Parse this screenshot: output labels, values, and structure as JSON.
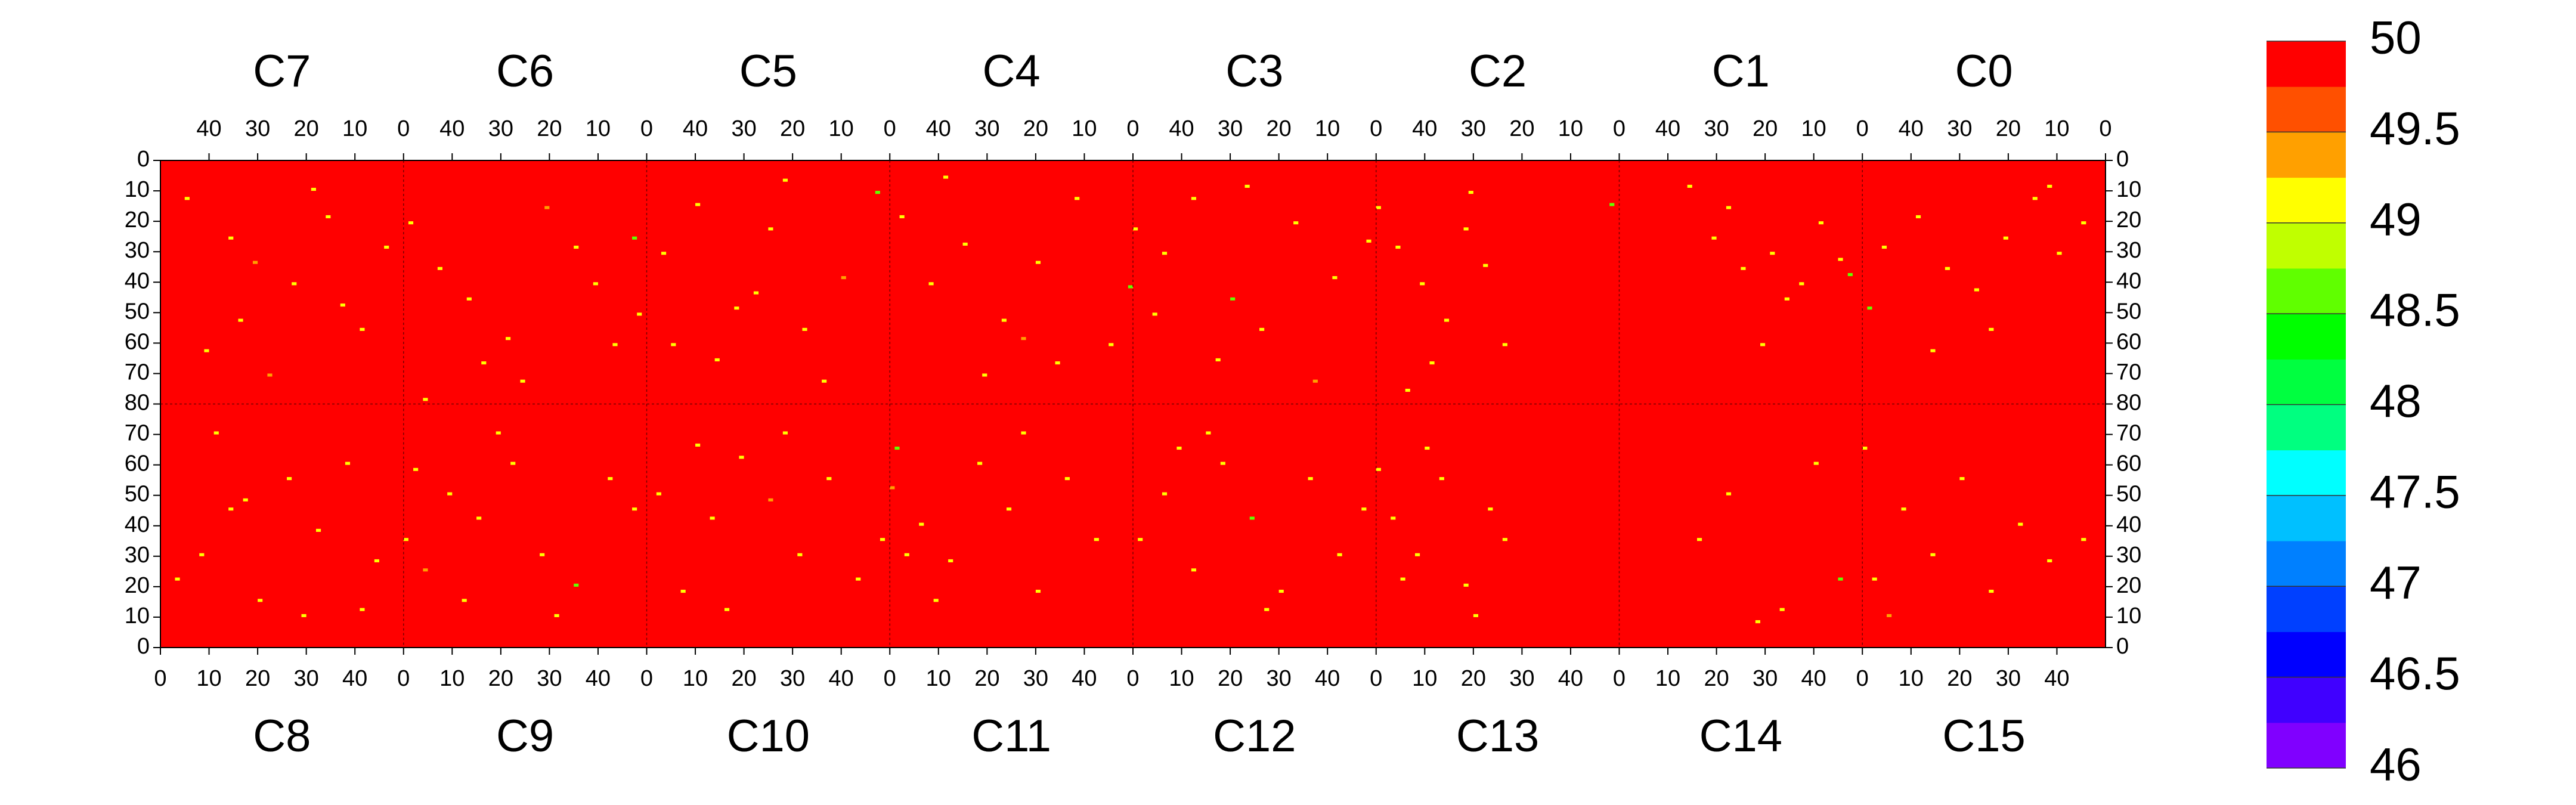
{
  "chart_data": {
    "type": "heatmap",
    "fill_value": 50,
    "xticks": [
      0,
      10,
      20,
      30,
      40
    ],
    "xlim": [
      0,
      50
    ],
    "yticks": [
      0,
      10,
      20,
      30,
      40,
      50,
      60,
      70,
      80
    ],
    "yticks_bottom": [
      0,
      10,
      20,
      30,
      40,
      50,
      60,
      70
    ],
    "ylim": [
      0,
      80
    ],
    "colorbar": {
      "lim": [
        46,
        50
      ],
      "ticks": [
        46,
        46.5,
        47,
        47.5,
        48,
        48.5,
        49,
        49.5,
        50
      ],
      "colors": [
        "#8000ff",
        "#4000ff",
        "#0000ff",
        "#0040ff",
        "#0080ff",
        "#00c0ff",
        "#00ffff",
        "#00ff80",
        "#00ff40",
        "#00ff00",
        "#60ff00",
        "#c0ff00",
        "#ffff00",
        "#ffa000",
        "#ff5000",
        "#ff0000"
      ]
    },
    "panels": [
      {
        "name": "C7",
        "position": "top",
        "x": [
          44,
          35,
          30,
          22,
          15,
          8,
          40,
          27,
          12,
          3,
          18,
          33
        ],
        "y": [
          12,
          25,
          33,
          40,
          18,
          55,
          62,
          70,
          47,
          28,
          9,
          52
        ],
        "values": [
          49,
          49,
          49.25,
          49,
          49,
          49,
          49,
          49.25,
          49,
          49,
          49,
          49
        ]
      },
      {
        "name": "C6",
        "position": "top",
        "x": [
          48,
          42,
          36,
          28,
          20,
          14,
          6,
          1,
          25,
          33,
          10,
          45,
          2
        ],
        "y": [
          20,
          35,
          45,
          58,
          15,
          28,
          60,
          50,
          72,
          66,
          40,
          78,
          25
        ],
        "values": [
          49,
          49,
          49,
          49,
          49.25,
          49,
          49,
          49,
          49,
          49,
          49,
          49,
          48.5
        ]
      },
      {
        "name": "C5",
        "position": "top",
        "x": [
          46,
          39,
          31,
          24,
          17,
          9,
          2,
          35,
          13,
          27,
          44,
          21
        ],
        "y": [
          30,
          14,
          48,
          22,
          55,
          38,
          10,
          65,
          72,
          43,
          60,
          6
        ],
        "values": [
          49,
          49,
          49,
          49,
          49,
          49.25,
          48.5,
          49,
          49,
          49,
          49,
          49
        ]
      },
      {
        "name": "C4",
        "position": "top",
        "x": [
          47,
          41,
          34,
          26,
          19,
          11,
          4,
          0,
          30,
          15,
          38,
          22
        ],
        "y": [
          18,
          40,
          27,
          52,
          33,
          12,
          60,
          41,
          70,
          66,
          5,
          58
        ],
        "values": [
          49,
          49,
          49,
          49,
          49,
          49,
          49,
          48.5,
          49,
          49,
          49,
          49.25
        ]
      },
      {
        "name": "C3",
        "position": "top",
        "x": [
          49,
          43,
          37,
          29,
          23,
          16,
          8,
          1,
          32,
          12,
          45,
          26
        ],
        "y": [
          22,
          30,
          12,
          45,
          55,
          20,
          38,
          26,
          65,
          72,
          50,
          8
        ],
        "values": [
          49,
          49,
          49,
          48.5,
          49,
          49,
          49,
          49,
          49,
          49.25,
          49,
          49
        ]
      },
      {
        "name": "C2",
        "position": "top",
        "x": [
          49,
          45,
          40,
          35,
          31,
          27,
          23,
          38,
          43,
          30,
          1
        ],
        "y": [
          15,
          28,
          40,
          52,
          22,
          34,
          60,
          66,
          75,
          10,
          14
        ],
        "values": [
          49,
          49,
          49,
          49,
          49,
          49,
          49,
          49,
          49,
          49,
          48.5
        ]
      },
      {
        "name": "C1",
        "position": "top",
        "x": [
          35,
          30,
          24,
          18,
          12,
          8,
          4,
          27,
          15,
          2,
          20
        ],
        "y": [
          8,
          25,
          35,
          30,
          40,
          20,
          32,
          15,
          45,
          37,
          60
        ],
        "values": [
          49,
          49,
          49,
          49,
          49,
          49,
          49,
          49,
          49,
          48.5,
          49
        ]
      },
      {
        "name": "C0",
        "position": "top",
        "x": [
          45,
          38,
          32,
          26,
          20,
          14,
          9,
          4,
          48,
          23,
          11,
          35
        ],
        "y": [
          28,
          18,
          35,
          42,
          25,
          12,
          30,
          20,
          48,
          55,
          8,
          62
        ],
        "values": [
          49,
          49,
          49,
          49,
          49,
          49,
          49,
          49,
          48.5,
          49,
          49,
          49
        ]
      },
      {
        "name": "C8",
        "position": "bottom",
        "x": [
          3,
          8,
          14,
          20,
          26,
          32,
          38,
          44,
          11,
          29,
          17,
          41
        ],
        "y": [
          22,
          30,
          45,
          15,
          55,
          38,
          60,
          28,
          70,
          10,
          48,
          12
        ],
        "values": [
          49,
          49,
          49,
          49,
          49,
          49,
          49,
          49,
          49,
          49,
          49,
          49
        ]
      },
      {
        "name": "C9",
        "position": "bottom",
        "x": [
          0,
          4,
          9,
          15,
          22,
          28,
          35,
          42,
          47,
          19,
          31,
          12,
          2
        ],
        "y": [
          35,
          25,
          50,
          42,
          60,
          30,
          20,
          55,
          45,
          70,
          10,
          15,
          58
        ],
        "values": [
          49,
          49.25,
          49,
          49,
          49,
          49,
          48.5,
          49,
          49,
          49,
          49,
          49,
          49
        ]
      },
      {
        "name": "C10",
        "position": "bottom",
        "x": [
          2,
          7,
          13,
          19,
          25,
          31,
          37,
          43,
          48,
          16,
          28,
          10
        ],
        "y": [
          50,
          18,
          42,
          62,
          48,
          30,
          55,
          22,
          35,
          12,
          70,
          66
        ],
        "values": [
          49,
          49,
          49,
          49,
          49.25,
          49,
          49,
          49,
          49,
          49,
          49,
          49
        ]
      },
      {
        "name": "C11",
        "position": "bottom",
        "x": [
          0,
          1,
          6,
          12,
          18,
          24,
          30,
          36,
          42,
          9,
          27,
          3
        ],
        "y": [
          52,
          65,
          40,
          28,
          60,
          45,
          18,
          55,
          35,
          15,
          70,
          30
        ],
        "values": [
          49.25,
          48.5,
          49,
          49,
          49,
          49,
          49,
          49,
          49,
          49,
          49,
          49
        ]
      },
      {
        "name": "C12",
        "position": "bottom",
        "x": [
          1,
          6,
          12,
          18,
          24,
          30,
          36,
          42,
          47,
          15,
          27,
          9
        ],
        "y": [
          35,
          50,
          25,
          60,
          42,
          18,
          55,
          30,
          45,
          70,
          12,
          65
        ],
        "values": [
          49,
          49,
          49,
          49,
          48.5,
          49,
          49,
          49,
          49,
          49,
          49,
          49
        ]
      },
      {
        "name": "C13",
        "position": "bottom",
        "x": [
          0,
          3,
          8,
          13,
          18,
          23,
          26,
          10,
          20,
          5
        ],
        "y": [
          58,
          42,
          30,
          55,
          20,
          45,
          35,
          65,
          10,
          22
        ],
        "values": [
          49,
          49,
          49,
          49,
          49,
          49,
          49,
          49,
          49,
          49
        ]
      },
      {
        "name": "C14",
        "position": "bottom",
        "x": [
          16,
          22,
          33,
          40,
          45,
          28
        ],
        "y": [
          35,
          50,
          12,
          60,
          22,
          8
        ],
        "values": [
          49,
          49,
          49,
          49,
          48.5,
          49
        ]
      },
      {
        "name": "C15",
        "position": "bottom",
        "x": [
          0,
          2,
          8,
          14,
          20,
          26,
          32,
          38,
          45,
          5
        ],
        "y": [
          65,
          22,
          45,
          30,
          55,
          18,
          40,
          28,
          35,
          10
        ],
        "values": [
          49,
          49,
          49,
          49,
          49,
          49,
          49,
          49,
          49,
          49.25
        ]
      }
    ]
  }
}
